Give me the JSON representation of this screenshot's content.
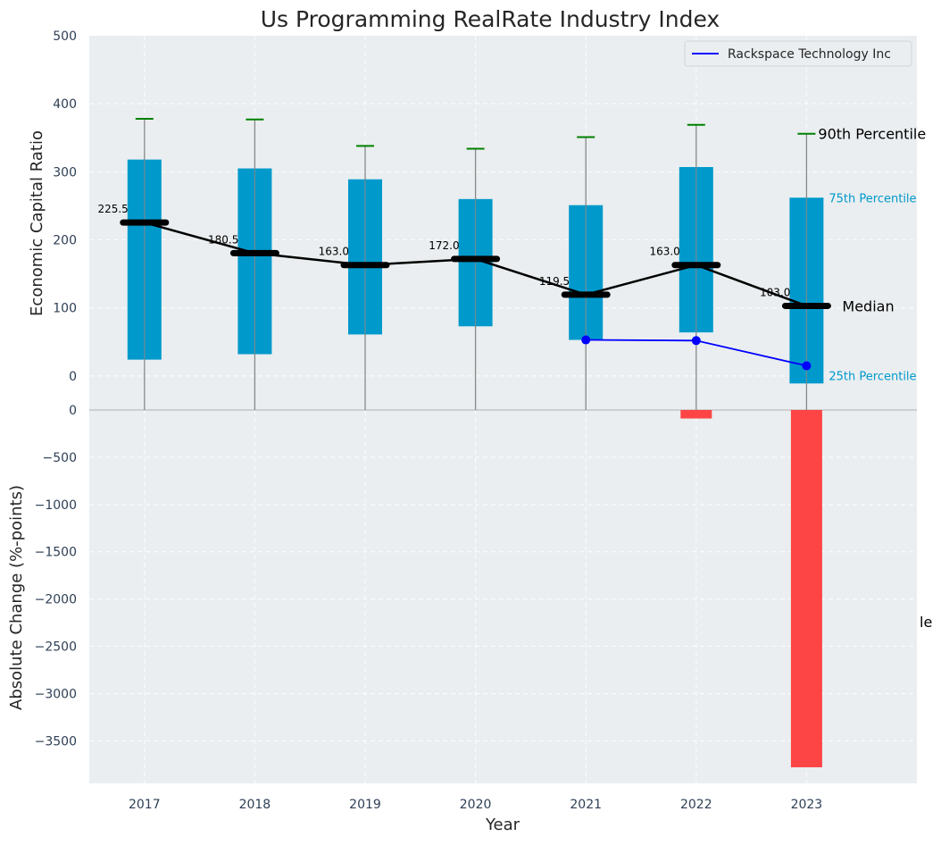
{
  "chart_data": {
    "type": "box-summary",
    "title": "Us Programming RealRate Industry Index",
    "xlabel": "Year",
    "categories": [
      "2017",
      "2018",
      "2019",
      "2020",
      "2021",
      "2022",
      "2023"
    ],
    "top": {
      "ylabel": "Economic Capital Ratio",
      "ylim": [
        -50,
        500
      ],
      "yticks": [
        0,
        100,
        200,
        300,
        400,
        500
      ],
      "p90": [
        378,
        377,
        338,
        334,
        351,
        369,
        356
      ],
      "p75": [
        318,
        305,
        289,
        260,
        251,
        307,
        262
      ],
      "median": [
        225.5,
        180.5,
        163.0,
        172.0,
        119.5,
        163.0,
        103.0
      ],
      "median_labels": [
        "225.5",
        "180.5",
        "163.0",
        "172.0",
        "119.5",
        "163.0",
        "103.0"
      ],
      "p25": [
        24,
        32,
        61,
        73,
        53,
        64,
        -11
      ],
      "company": {
        "name": "Rackspace Technology Inc",
        "color": "#0000ff",
        "years": [
          "2021",
          "2022",
          "2023"
        ],
        "values": [
          53,
          52,
          15
        ]
      },
      "annotations": {
        "p90": "90th Percentile",
        "p75": "75th Percentile",
        "median": "Median",
        "p25": "25th Percentile"
      },
      "legend_position": "top-right"
    },
    "bottom": {
      "ylabel": "Absolute Change (%-points)",
      "ylim": [
        -3950,
        0
      ],
      "yticks": [
        0,
        -500,
        -1000,
        -1500,
        -2000,
        -2500,
        -3000,
        -3500
      ],
      "ytick_labels": [
        "0",
        "−500",
        "−1000",
        "−1500",
        "−2000",
        "−2500",
        "−3000",
        "−3500"
      ],
      "years": [
        "2022",
        "2023"
      ],
      "values": [
        -90,
        -3780
      ],
      "clipped_label": "le"
    },
    "colors": {
      "box": "#0099cc",
      "whisker": "#888888",
      "p90_cap": "#008000",
      "median_line": "#000000",
      "change_bar": "#ff3b3b",
      "background": "#eaeef0"
    }
  }
}
